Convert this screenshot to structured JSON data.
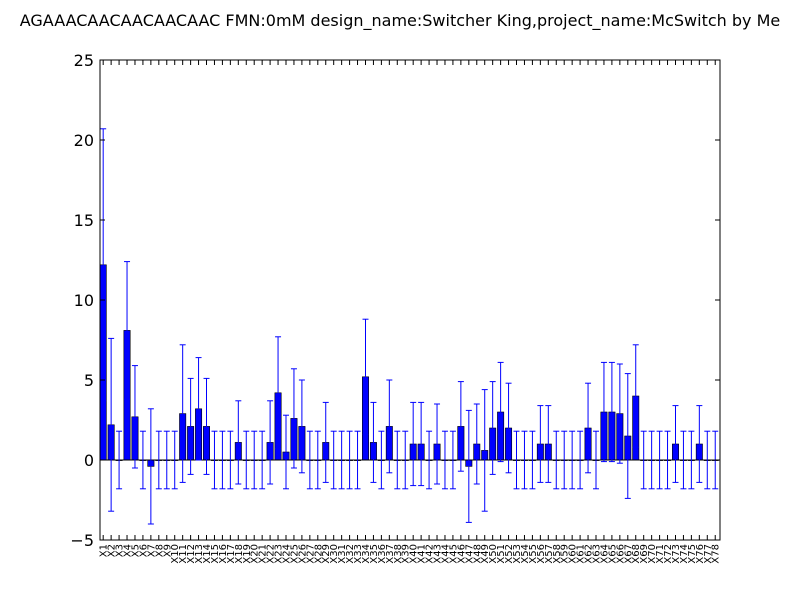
{
  "chart_data": {
    "type": "bar",
    "title": "AGAAACAACAACAACAAC  FMN:0mM  design_name:Switcher King,project_name:McSwitch by Me",
    "xlabel": "",
    "ylabel": "",
    "ylim": [
      -5,
      25
    ],
    "yticks": [
      -5,
      0,
      5,
      10,
      15,
      20,
      25
    ],
    "grid": false,
    "bar_color": "#0000ff",
    "error_color": "#0000ff",
    "categories": [
      "X1",
      "X2",
      "X3",
      "X4",
      "X5",
      "X6",
      "X7",
      "X8",
      "X9",
      "X10",
      "X11",
      "X12",
      "X13",
      "X14",
      "X15",
      "X16",
      "X17",
      "X18",
      "X19",
      "X20",
      "X21",
      "X22",
      "X23",
      "X24",
      "X25",
      "X26",
      "X27",
      "X28",
      "X29",
      "X30",
      "X31",
      "X32",
      "X33",
      "X34",
      "X35",
      "X36",
      "X37",
      "X38",
      "X39",
      "X40",
      "X41",
      "X42",
      "X43",
      "X44",
      "X45",
      "X46",
      "X47",
      "X48",
      "X49",
      "X50",
      "X51",
      "X52",
      "X53",
      "X54",
      "X55",
      "X56",
      "X57",
      "X58",
      "X59",
      "X60",
      "X61",
      "X62",
      "X63",
      "X64",
      "X65",
      "X66",
      "X67",
      "X68",
      "X69",
      "X70",
      "X71",
      "X72",
      "X73",
      "X74",
      "X75",
      "X76",
      "X77",
      "X78"
    ],
    "values": [
      12.2,
      2.2,
      0,
      8.1,
      2.7,
      0,
      -0.4,
      0,
      0,
      0,
      2.9,
      2.1,
      3.2,
      2.1,
      0,
      0,
      0,
      1.1,
      0,
      0,
      0,
      1.1,
      4.2,
      0.5,
      2.6,
      2.1,
      0,
      0,
      1.1,
      0,
      0,
      0,
      0,
      5.2,
      1.1,
      0,
      2.1,
      0,
      0,
      1.0,
      1.0,
      0,
      1.0,
      0,
      0,
      2.1,
      -0.4,
      1.0,
      0.6,
      2.0,
      3.0,
      2.0,
      0,
      0,
      0,
      1.0,
      1.0,
      0,
      0,
      0,
      0,
      2.0,
      0,
      3.0,
      3.0,
      2.9,
      1.5,
      4.0,
      0,
      0,
      0,
      0,
      1.0,
      0,
      0,
      1.0,
      0,
      0
    ],
    "errors": [
      8.5,
      5.4,
      1.8,
      4.3,
      3.2,
      1.8,
      3.6,
      1.8,
      1.8,
      1.8,
      4.3,
      3.0,
      3.2,
      3.0,
      1.8,
      1.8,
      1.8,
      2.6,
      1.8,
      1.8,
      1.8,
      2.6,
      3.5,
      2.3,
      3.1,
      2.9,
      1.8,
      1.8,
      2.5,
      1.8,
      1.8,
      1.8,
      1.8,
      3.6,
      2.5,
      1.8,
      2.9,
      1.8,
      1.8,
      2.6,
      2.6,
      1.8,
      2.5,
      1.8,
      1.8,
      2.8,
      3.5,
      2.5,
      3.8,
      2.9,
      3.1,
      2.8,
      1.8,
      1.8,
      1.8,
      2.4,
      2.4,
      1.8,
      1.8,
      1.8,
      1.8,
      2.8,
      1.8,
      3.1,
      3.1,
      3.1,
      3.9,
      3.2,
      1.8,
      1.8,
      1.8,
      1.8,
      2.4,
      1.8,
      1.8,
      2.4,
      1.8,
      1.8
    ]
  }
}
